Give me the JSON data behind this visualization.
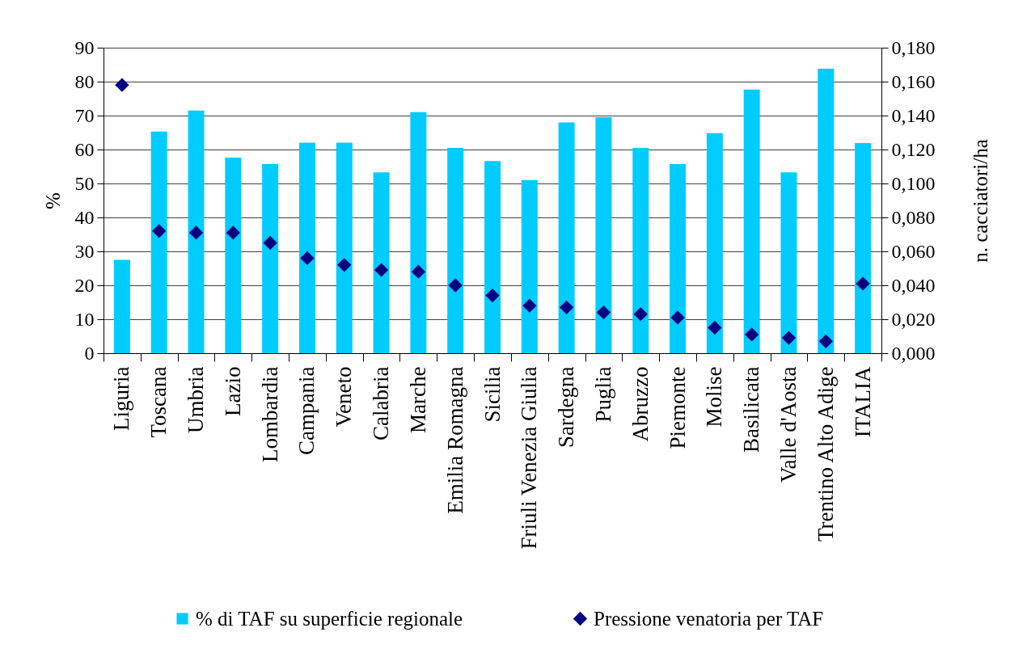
{
  "chart_data": {
    "type": "bar",
    "categories": [
      "Liguria",
      "Toscana",
      "Umbria",
      "Lazio",
      "Lombardia",
      "Campania",
      "Veneto",
      "Calabria",
      "Marche",
      "Emilia Romagna",
      "Sicilia",
      "Friuli Venezia Giulia",
      "Sardegna",
      "Puglia",
      "Abruzzo",
      "Piemonte",
      "Molise",
      "Basilicata",
      "Valle d'Aosta",
      "Trentino Alto Adige",
      "ITALIA"
    ],
    "series": [
      {
        "name": "% di TAF su superficie regionale",
        "color": "#00ccff",
        "values": [
          27.5,
          65.3,
          71.5,
          57.6,
          55.7,
          62,
          62,
          53.3,
          71,
          60.5,
          56.6,
          51,
          68,
          69.5,
          60.5,
          55.7,
          64.8,
          77.7,
          53.3,
          83.8,
          61.9
        ]
      },
      {
        "name": "Pressione venatoria per TAF",
        "type": "scatter",
        "axis": "y2",
        "marker": "diamond",
        "color": "#000080",
        "values": [
          0.158,
          0.072,
          0.071,
          0.071,
          0.065,
          0.056,
          0.052,
          0.049,
          0.048,
          0.04,
          0.034,
          0.028,
          0.027,
          0.024,
          0.023,
          0.021,
          0.015,
          0.011,
          0.009,
          0.007,
          0.041
        ]
      }
    ],
    "ylabel": "%",
    "y2label": "n. cacciatori/ha",
    "ylim": [
      0,
      90
    ],
    "yticks": [
      0,
      10,
      20,
      30,
      40,
      50,
      60,
      70,
      80,
      90
    ],
    "y2lim": [
      0,
      0.18
    ],
    "y2ticks": [
      {
        "value": 0,
        "label": "0,000"
      },
      {
        "value": 0.02,
        "label": "0,020"
      },
      {
        "value": 0.04,
        "label": "0,040"
      },
      {
        "value": 0.06,
        "label": "0,060"
      },
      {
        "value": 0.08,
        "label": "0,080"
      },
      {
        "value": 0.1,
        "label": "0,100"
      },
      {
        "value": 0.12,
        "label": "0,120"
      },
      {
        "value": 0.14,
        "label": "0,140"
      },
      {
        "value": 0.16,
        "label": "0,160"
      },
      {
        "value": 0.18,
        "label": "0,180"
      }
    ],
    "grid": "y",
    "legend": "bottom"
  }
}
